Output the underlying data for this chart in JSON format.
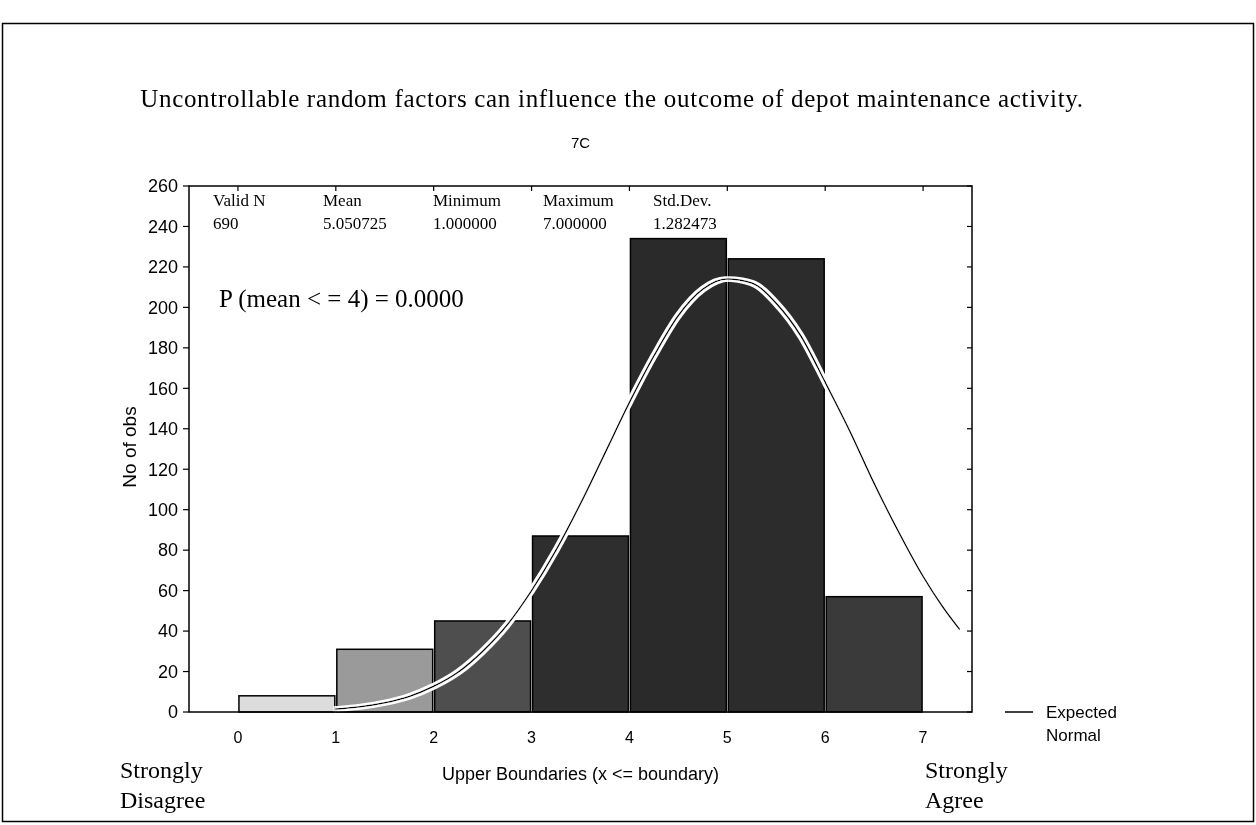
{
  "chart_data": {
    "type": "histogram",
    "title": "Uncontrollable random factors can influence the outcome of depot maintenance activity.",
    "subtitle": "7C",
    "xlabel": "Upper Boundaries (x <= boundary)",
    "ylabel": "No of obs",
    "annotations": [
      "Valid N",
      "690",
      "Mean",
      "5.050725",
      "Minimum",
      "1.000000",
      "Maximum",
      "7.000000",
      "Std.Dev.",
      "1.282473",
      "P (mean < = 4) = 0.0000",
      "Strongly Disagree",
      "Strongly Agree"
    ],
    "bins": [
      0,
      1,
      2,
      3,
      4,
      5,
      6,
      7
    ],
    "values": [
      8,
      31,
      45,
      87,
      234,
      224,
      57
    ],
    "colors": [
      "#dcdcdc",
      "#9a9a9a",
      "#4e4e4e",
      "#2e2e2e",
      "#2a2a2a",
      "#2c2c2c",
      "#3a3a3a"
    ],
    "series": [
      {
        "type": "line",
        "name": "Expected Normal",
        "color": "#000000",
        "x": [
          1,
          1.25,
          1.5,
          1.75,
          2,
          2.25,
          2.5,
          2.75,
          3,
          3.25,
          3.5,
          3.75,
          4,
          4.25,
          4.5,
          4.75,
          5,
          5.25,
          5.5,
          5.75,
          6,
          6.25,
          6.5,
          6.75,
          7,
          7.2,
          7.37
        ],
        "values": [
          1.5,
          2.6,
          4.6,
          7.7,
          12.7,
          19.7,
          30,
          43,
          60,
          80,
          103,
          128,
          153,
          176,
          196,
          209,
          214,
          212,
          202,
          186,
          163,
          139,
          113,
          89,
          67,
          52,
          41
        ]
      }
    ],
    "xlim": [
      -0.5,
      7.5
    ],
    "xticks": [
      0,
      1,
      2,
      3,
      4,
      5,
      6,
      7
    ],
    "ylim": [
      0,
      260
    ],
    "yticks": [
      0,
      20,
      40,
      60,
      80,
      100,
      120,
      140,
      160,
      180,
      200,
      220,
      240,
      260
    ],
    "legend": "bottom right"
  }
}
